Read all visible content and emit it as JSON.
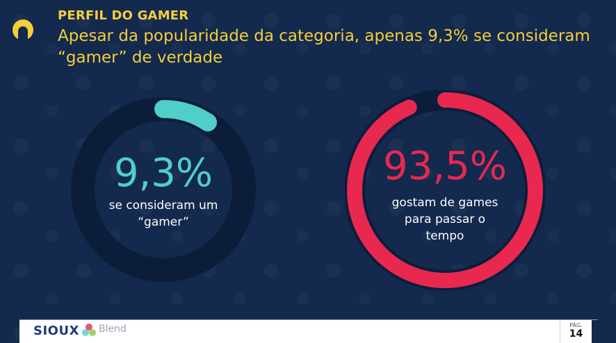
{
  "header": {
    "kicker": "PERFIL DO GAMER",
    "headline": "Apesar da popularidade da categoria, apenas 9,3% se consideram “gamer” de verdade"
  },
  "stats": [
    {
      "value": 9.3,
      "label": "9,3%",
      "caption_line1": "se consideram um",
      "caption_line2": "“gamer”",
      "caption_line3": "",
      "color": "#4fcfc7",
      "track_color": "#0c1d3a"
    },
    {
      "value": 93.5,
      "label": "93,5%",
      "caption_line1": "gostam de games",
      "caption_line2": "para passar o",
      "caption_line3": "tempo",
      "color": "#e8284f",
      "track_color": "#0c1d3a"
    }
  ],
  "footer": {
    "brand": "SIOUX",
    "partner": "Blend",
    "page_label": "PÁG.",
    "page_number": "14"
  },
  "colors": {
    "background": "#13294d",
    "accent": "#f4cf3a"
  }
}
